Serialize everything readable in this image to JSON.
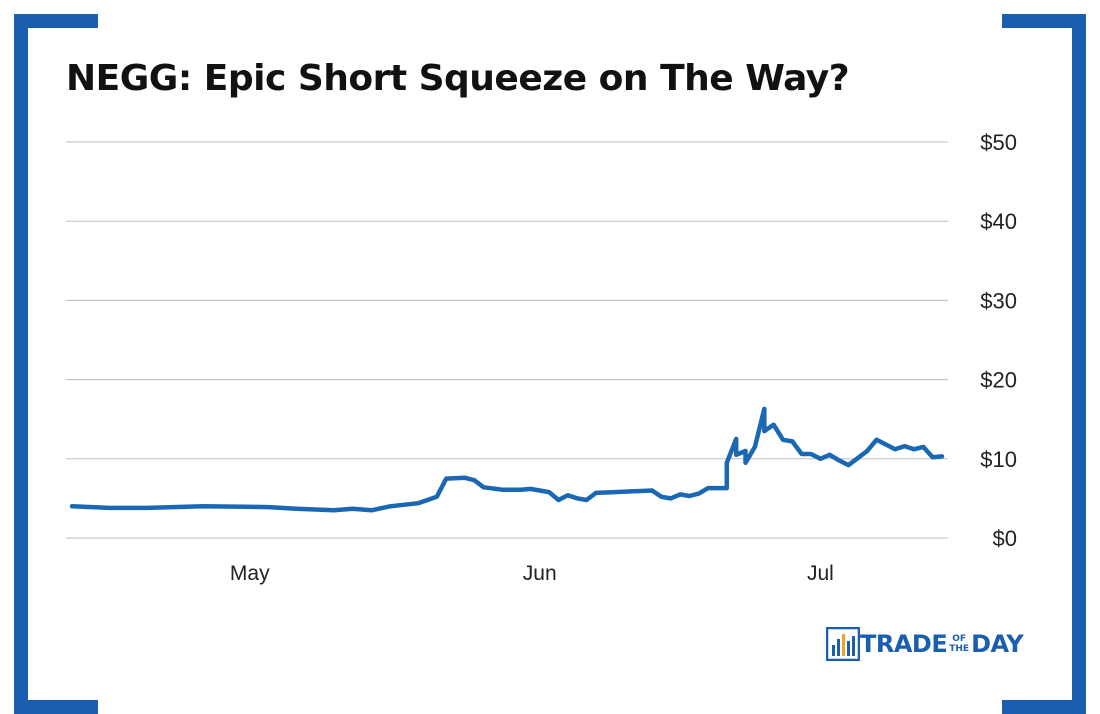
{
  "title": "NEGG: Epic Short Squeeze on The Way?",
  "logo": {
    "word_a": "TRADE",
    "word_of": "OF",
    "word_the": "THE",
    "word_b": "DAY"
  },
  "colors": {
    "line": "#1a68b3",
    "brand": "#1a5eb0",
    "grid": "#bdbdbd"
  },
  "chart_data": {
    "type": "line",
    "title": "NEGG: Epic Short Squeeze on The Way?",
    "xlabel": "",
    "ylabel": "",
    "ylim": [
      0,
      50
    ],
    "yticks": [
      0,
      10,
      20,
      30,
      40,
      50
    ],
    "ytick_labels": [
      "$0",
      "$10",
      "$20",
      "$30",
      "$40",
      "$50"
    ],
    "xlim": [
      "2021-04-12",
      "2021-07-14"
    ],
    "xticks": [
      "2021-05-01",
      "2021-06-01",
      "2021-07-01"
    ],
    "xtick_labels": [
      "May",
      "Jun",
      "Jul"
    ],
    "grid": "horizontal",
    "series": [
      {
        "values": [
          [
            "2021-04-12",
            4.0
          ],
          [
            "2021-04-16",
            3.8
          ],
          [
            "2021-04-20",
            3.8
          ],
          [
            "2021-04-26",
            4.0
          ],
          [
            "2021-05-03",
            3.9
          ],
          [
            "2021-05-06",
            3.7
          ],
          [
            "2021-05-10",
            3.5
          ],
          [
            "2021-05-12",
            3.7
          ],
          [
            "2021-05-14",
            3.5
          ],
          [
            "2021-05-16",
            4.0
          ],
          [
            "2021-05-19",
            4.4
          ],
          [
            "2021-05-21",
            5.2
          ],
          [
            "2021-05-22",
            7.5
          ],
          [
            "2021-05-24",
            7.6
          ],
          [
            "2021-05-25",
            7.3
          ],
          [
            "2021-05-26",
            6.4
          ],
          [
            "2021-05-28",
            6.1
          ],
          [
            "2021-05-30",
            6.1
          ],
          [
            "2021-05-31",
            6.2
          ],
          [
            "2021-06-02",
            5.8
          ],
          [
            "2021-06-03",
            4.8
          ],
          [
            "2021-06-04",
            5.4
          ],
          [
            "2021-06-05",
            5.0
          ],
          [
            "2021-06-06",
            4.8
          ],
          [
            "2021-06-07",
            5.7
          ],
          [
            "2021-06-09",
            5.8
          ],
          [
            "2021-06-11",
            5.9
          ],
          [
            "2021-06-13",
            6.0
          ],
          [
            "2021-06-14",
            5.2
          ],
          [
            "2021-06-15",
            5.0
          ],
          [
            "2021-06-16",
            5.5
          ],
          [
            "2021-06-17",
            5.3
          ],
          [
            "2021-06-18",
            5.6
          ],
          [
            "2021-06-19",
            6.3
          ],
          [
            "2021-06-21",
            6.3
          ],
          [
            "2021-06-21",
            9.5
          ],
          [
            "2021-06-22",
            12.5
          ],
          [
            "2021-06-22",
            10.5
          ],
          [
            "2021-06-23",
            11.0
          ],
          [
            "2021-06-23",
            9.5
          ],
          [
            "2021-06-24",
            11.5
          ],
          [
            "2021-06-25",
            16.3
          ],
          [
            "2021-06-25",
            13.5
          ],
          [
            "2021-06-26",
            14.3
          ],
          [
            "2021-06-27",
            12.4
          ],
          [
            "2021-06-28",
            12.2
          ],
          [
            "2021-06-29",
            10.6
          ],
          [
            "2021-06-30",
            10.6
          ],
          [
            "2021-07-01",
            10.0
          ],
          [
            "2021-07-02",
            10.5
          ],
          [
            "2021-07-03",
            9.8
          ],
          [
            "2021-07-04",
            9.2
          ],
          [
            "2021-07-06",
            11.0
          ],
          [
            "2021-07-07",
            12.4
          ],
          [
            "2021-07-08",
            11.8
          ],
          [
            "2021-07-09",
            11.2
          ],
          [
            "2021-07-10",
            11.6
          ],
          [
            "2021-07-11",
            11.2
          ],
          [
            "2021-07-12",
            11.5
          ],
          [
            "2021-07-13",
            10.2
          ],
          [
            "2021-07-14",
            10.3
          ]
        ]
      }
    ]
  }
}
